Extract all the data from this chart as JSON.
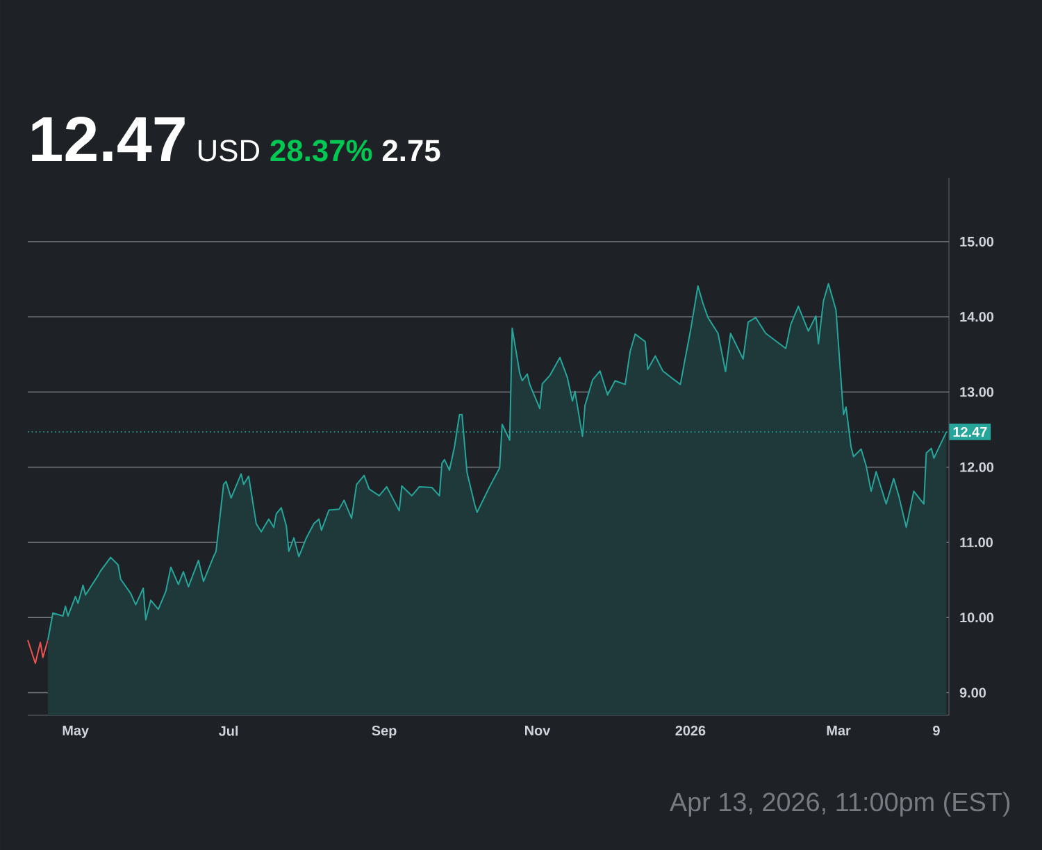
{
  "chart_data": {
    "type": "line",
    "title": "12.47",
    "annotations": [
      "USD",
      "28.37%",
      "2.75",
      "Apr 13, 2026, 11:00pm (EST)"
    ],
    "xlim": [
      "2025-04-12",
      "2026-04-14"
    ],
    "ylim": [
      8.7,
      15.85
    ],
    "xticks": [
      {
        "value": "2025-05-01",
        "label": "May"
      },
      {
        "value": "2025-07-01",
        "label": "Jul"
      },
      {
        "value": "2025-09-01",
        "label": "Sep"
      },
      {
        "value": "2025-11-01",
        "label": "Nov"
      },
      {
        "value": "2026-01-01",
        "label": "2026"
      },
      {
        "value": "2026-03-01",
        "label": "Mar"
      },
      {
        "value": "2026-04-09",
        "label": "9"
      }
    ],
    "yticks": [
      {
        "value": 9,
        "label": "9.00"
      },
      {
        "value": 10,
        "label": "10.00"
      },
      {
        "value": 11,
        "label": "11.00"
      },
      {
        "value": 12,
        "label": "12.00"
      },
      {
        "value": 13,
        "label": "13.00"
      },
      {
        "value": 14,
        "label": "14.00"
      },
      {
        "value": 15,
        "label": "15.00"
      }
    ],
    "grid": "y",
    "marker": "none",
    "line_style": "solid",
    "ref_lines": [
      {
        "axis": "y",
        "value": 12.47,
        "label": "12.47",
        "color": "#26a69a",
        "line_style": "dotted"
      }
    ],
    "series": [
      {
        "color": "#ef5350",
        "x": [
          "2025-04-12",
          "2025-04-15",
          "2025-04-17",
          "2025-04-18",
          "2025-04-20"
        ],
        "values": [
          9.7,
          9.39,
          9.67,
          9.47,
          9.7
        ]
      },
      {
        "type": "area",
        "color": "#26a69a",
        "x": [
          "2025-04-20",
          "2025-04-22",
          "2025-04-26",
          "2025-04-27",
          "2025-04-28",
          "2025-05-01",
          "2025-05-02",
          "2025-05-04",
          "2025-05-05",
          "2025-05-10",
          "2025-05-11",
          "2025-05-15",
          "2025-05-18",
          "2025-05-19",
          "2025-05-23",
          "2025-05-25",
          "2025-05-28",
          "2025-05-29",
          "2025-05-31",
          "2025-06-03",
          "2025-06-06",
          "2025-06-08",
          "2025-06-11",
          "2025-06-13",
          "2025-06-15",
          "2025-06-19",
          "2025-06-21",
          "2025-06-25",
          "2025-06-26",
          "2025-06-29",
          "2025-06-30",
          "2025-07-02",
          "2025-07-06",
          "2025-07-07",
          "2025-07-09",
          "2025-07-12",
          "2025-07-14",
          "2025-07-17",
          "2025-07-19",
          "2025-07-20",
          "2025-07-22",
          "2025-07-24",
          "2025-07-25",
          "2025-07-27",
          "2025-07-29",
          "2025-08-01",
          "2025-08-04",
          "2025-08-06",
          "2025-08-07",
          "2025-08-10",
          "2025-08-14",
          "2025-08-16",
          "2025-08-19",
          "2025-08-21",
          "2025-08-24",
          "2025-08-26",
          "2025-08-30",
          "2025-09-02",
          "2025-09-07",
          "2025-09-08",
          "2025-09-12",
          "2025-09-15",
          "2025-09-20",
          "2025-09-23",
          "2025-09-24",
          "2025-09-25",
          "2025-09-27",
          "2025-09-29",
          "2025-10-01",
          "2025-10-02",
          "2025-10-04",
          "2025-10-07",
          "2025-10-08",
          "2025-10-13",
          "2025-10-17",
          "2025-10-18",
          "2025-10-21",
          "2025-10-22",
          "2025-10-25",
          "2025-10-26",
          "2025-10-28",
          "2025-10-29",
          "2025-11-02",
          "2025-11-03",
          "2025-11-06",
          "2025-11-10",
          "2025-11-13",
          "2025-11-15",
          "2025-11-16",
          "2025-11-19",
          "2025-11-20",
          "2025-11-23",
          "2025-11-26",
          "2025-11-29",
          "2025-12-02",
          "2025-12-06",
          "2025-12-08",
          "2025-12-10",
          "2025-12-14",
          "2025-12-15",
          "2025-12-18",
          "2025-12-21",
          "2025-12-28",
          "2025-12-30",
          "2026-01-01",
          "2026-01-04",
          "2026-01-06",
          "2026-01-08",
          "2026-01-12",
          "2026-01-15",
          "2026-01-17",
          "2026-01-22",
          "2026-01-24",
          "2026-01-27",
          "2026-01-31",
          "2026-02-08",
          "2026-02-10",
          "2026-02-13",
          "2026-02-17",
          "2026-02-20",
          "2026-02-21",
          "2026-02-23",
          "2026-02-25",
          "2026-02-28",
          "2026-03-03",
          "2026-03-04",
          "2026-03-06",
          "2026-03-07",
          "2026-03-10",
          "2026-03-12",
          "2026-03-14",
          "2026-03-16",
          "2026-03-20",
          "2026-03-23",
          "2026-03-25",
          "2026-03-28",
          "2026-03-31",
          "2026-04-04",
          "2026-04-05",
          "2026-04-07",
          "2026-04-08",
          "2026-04-13"
        ],
        "values": [
          9.7,
          10.06,
          10.02,
          10.15,
          10.02,
          10.28,
          10.19,
          10.43,
          10.3,
          10.56,
          10.62,
          10.8,
          10.7,
          10.51,
          10.32,
          10.17,
          10.39,
          9.97,
          10.23,
          10.11,
          10.35,
          10.67,
          10.44,
          10.61,
          10.41,
          10.76,
          10.48,
          10.81,
          10.88,
          11.77,
          11.81,
          11.59,
          11.91,
          11.77,
          11.88,
          11.25,
          11.14,
          11.31,
          11.2,
          11.38,
          11.46,
          11.22,
          10.88,
          11.06,
          10.81,
          11.06,
          11.25,
          11.31,
          11.16,
          11.43,
          11.44,
          11.56,
          11.32,
          11.77,
          11.89,
          11.71,
          11.62,
          11.74,
          11.42,
          11.75,
          11.62,
          11.74,
          11.73,
          11.62,
          12.05,
          12.1,
          11.96,
          12.27,
          12.7,
          12.7,
          11.93,
          11.51,
          11.4,
          11.74,
          11.99,
          12.57,
          12.36,
          13.85,
          13.25,
          13.15,
          13.24,
          13.1,
          12.78,
          13.11,
          13.22,
          13.46,
          13.19,
          12.88,
          13.01,
          12.41,
          12.82,
          13.16,
          13.28,
          12.96,
          13.15,
          13.1,
          13.54,
          13.77,
          13.67,
          13.3,
          13.48,
          13.28,
          13.1,
          13.46,
          13.81,
          14.41,
          14.18,
          13.99,
          13.78,
          13.27,
          13.78,
          13.44,
          13.93,
          13.99,
          13.78,
          13.58,
          13.9,
          14.14,
          13.81,
          14.01,
          13.64,
          14.21,
          14.44,
          14.09,
          12.7,
          12.8,
          12.27,
          12.14,
          12.24,
          12.02,
          11.68,
          11.94,
          11.51,
          11.85,
          11.62,
          11.2,
          11.68,
          11.51,
          12.19,
          12.25,
          12.12,
          12.47
        ]
      }
    ]
  }
}
